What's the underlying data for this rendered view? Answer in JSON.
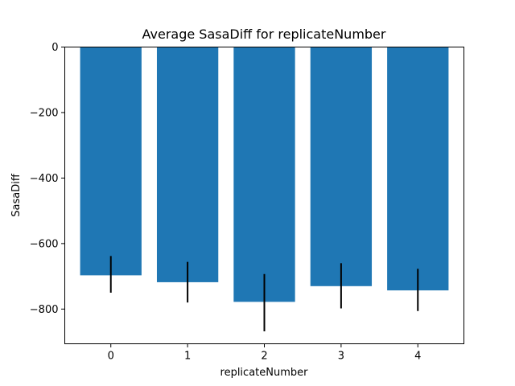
{
  "chart_data": {
    "type": "bar",
    "title": "Average SasaDiff for replicateNumber",
    "xlabel": "replicateNumber",
    "ylabel": "SasaDiff",
    "categories": [
      "0",
      "1",
      "2",
      "3",
      "4"
    ],
    "values": [
      -697,
      -718,
      -778,
      -730,
      -743
    ],
    "error_bars": [
      {
        "low": -750,
        "high": -638
      },
      {
        "low": -780,
        "high": -656
      },
      {
        "low": -868,
        "high": -693
      },
      {
        "low": -798,
        "high": -660
      },
      {
        "low": -806,
        "high": -677
      }
    ],
    "y_ticks": [
      "0",
      "−200",
      "−400",
      "−600",
      "−800"
    ],
    "y_tick_values": [
      0,
      -200,
      -400,
      -600,
      -800
    ],
    "ylim": [
      -906,
      0
    ],
    "grid": false,
    "colors": {
      "bar": "#1f77b4",
      "error": "#000000",
      "axes": "#000000"
    }
  }
}
